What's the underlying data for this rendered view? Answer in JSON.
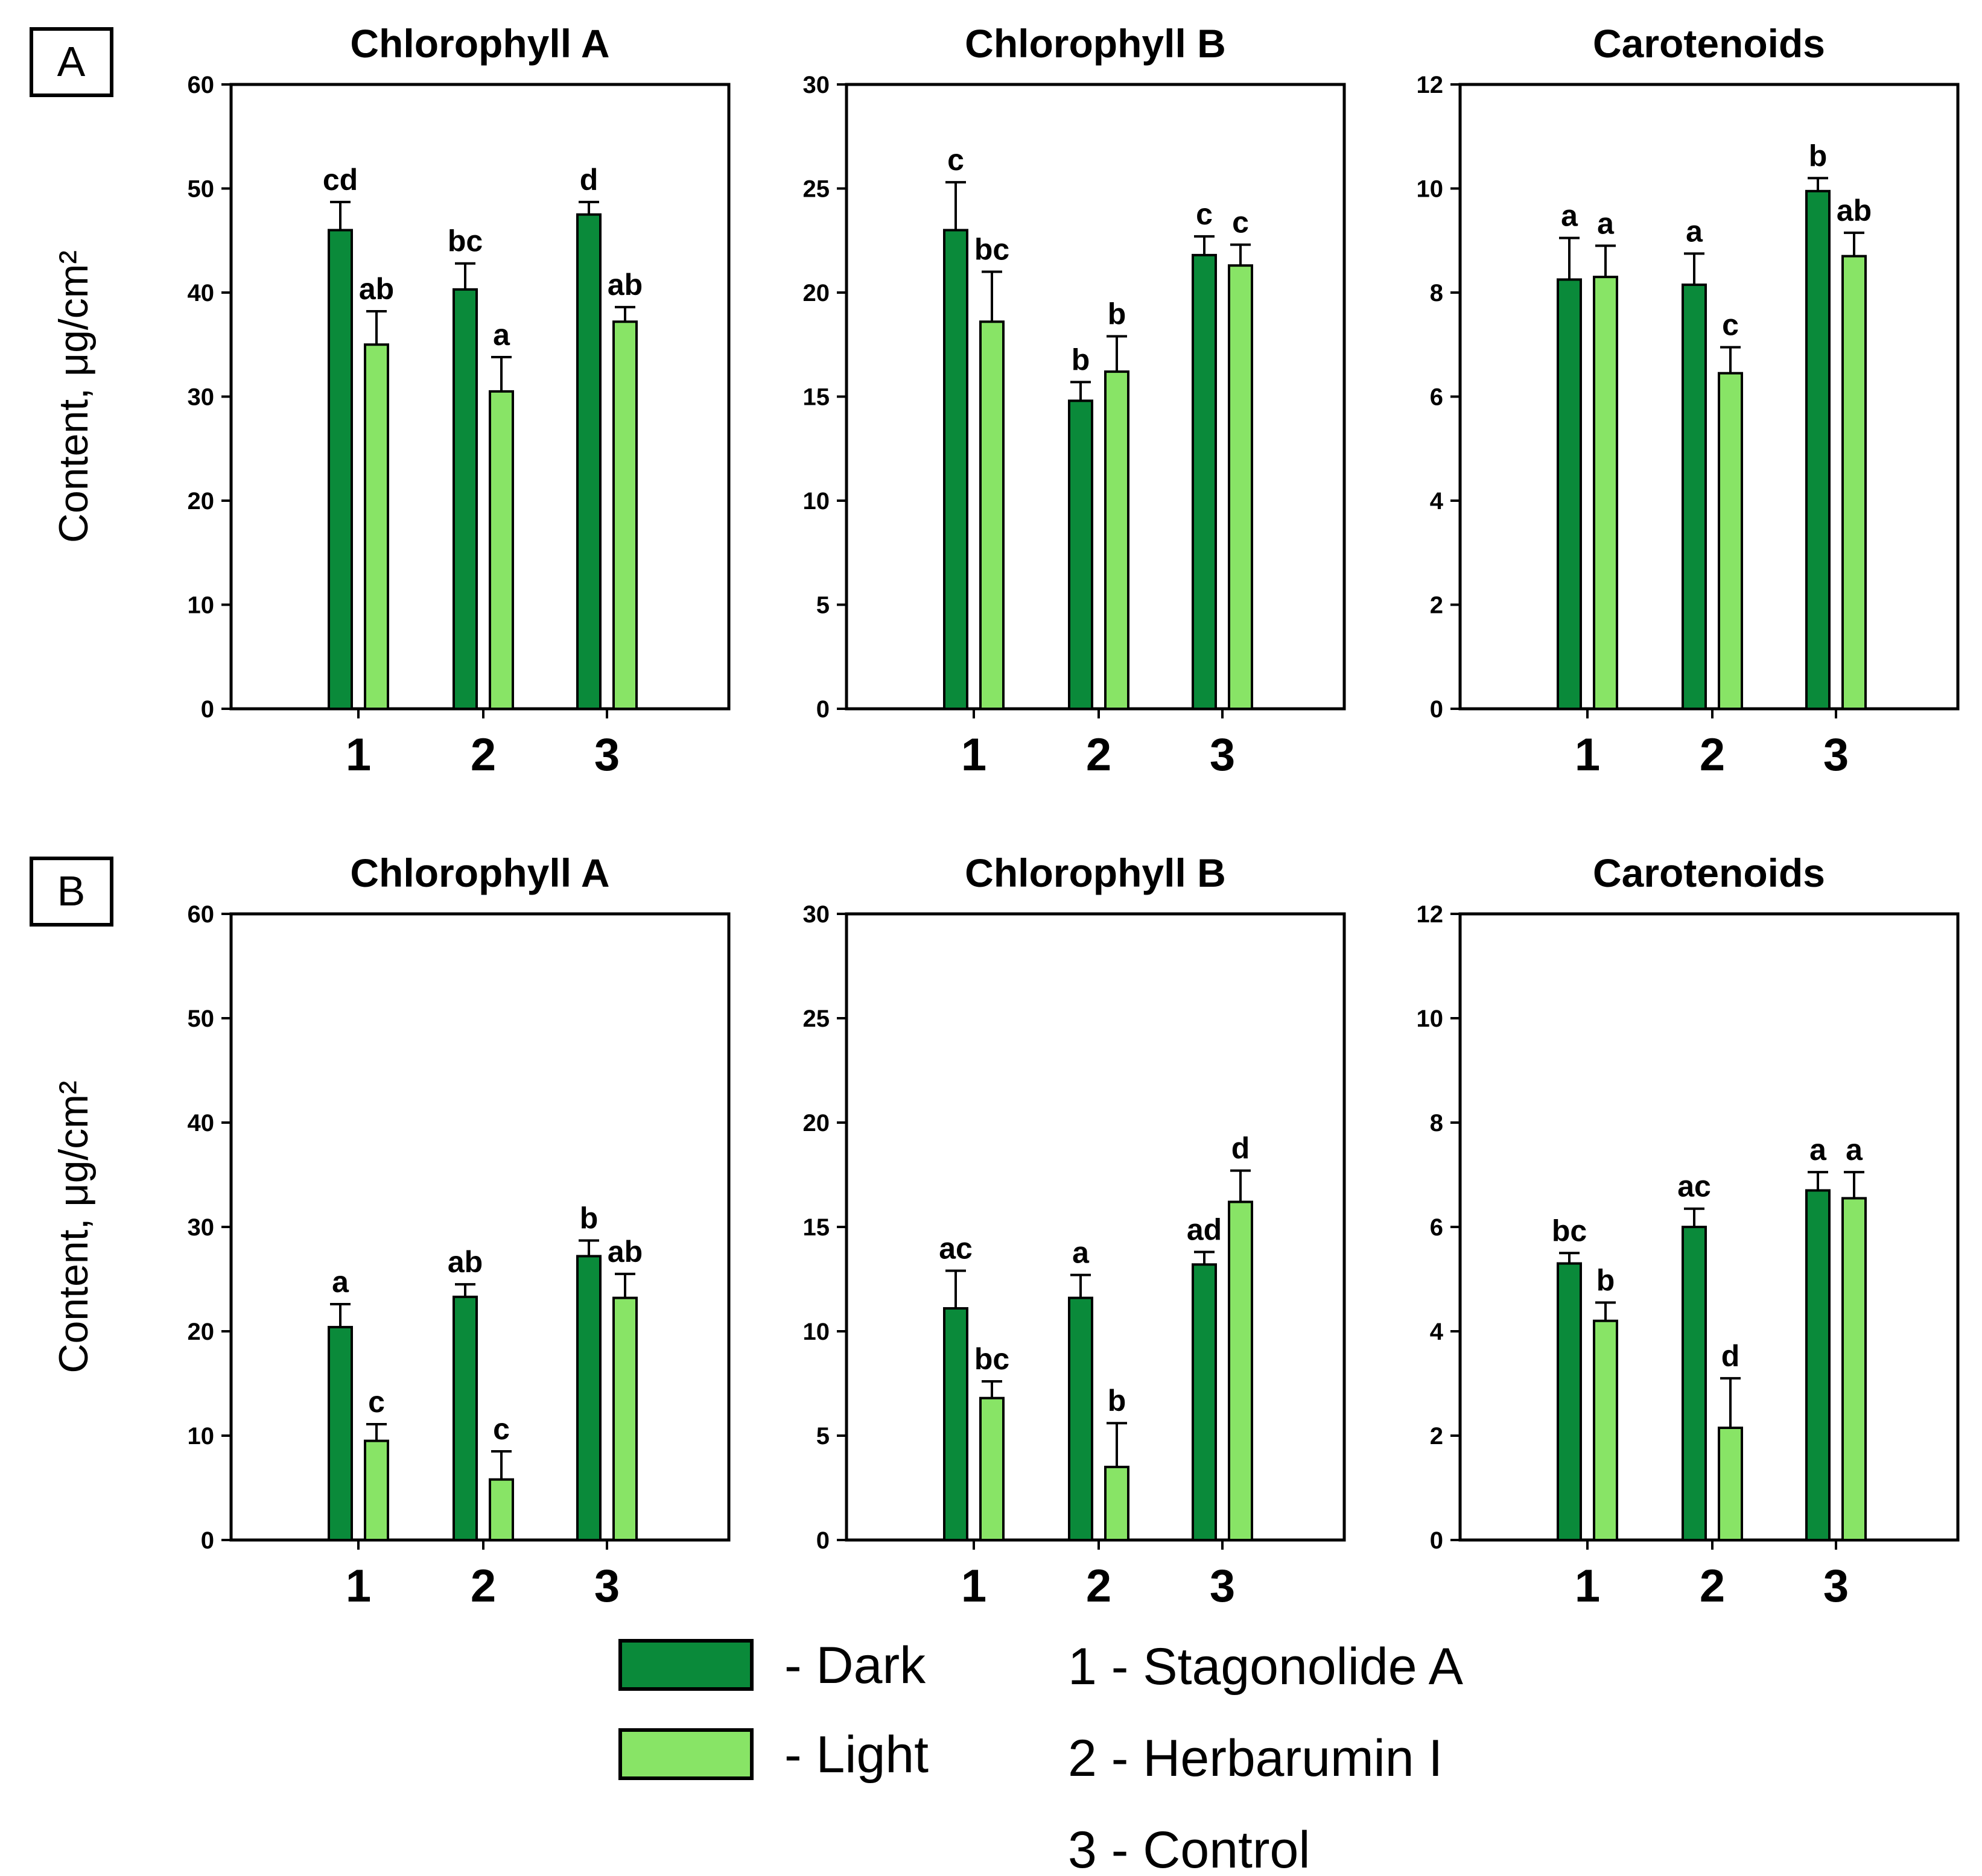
{
  "colors": {
    "dark": "#0a8a3a",
    "light": "#88e466",
    "stroke": "#000000"
  },
  "legend": {
    "series": [
      {
        "key": "dark",
        "label": "- Dark"
      },
      {
        "key": "light",
        "label": "- Light"
      }
    ],
    "treatments": [
      "1 - Stagonolide A",
      "2 - Herbarumin I",
      "3 - Control"
    ]
  },
  "chart_data": [
    {
      "panel": "A",
      "type": "bar",
      "title": "Chlorophyll A",
      "ylabel": "Content, μg/cm²",
      "ylim": [
        0,
        60
      ],
      "yticks": [
        0,
        10,
        20,
        30,
        40,
        50,
        60
      ],
      "categories": [
        "1",
        "2",
        "3"
      ],
      "series": [
        {
          "name": "Dark",
          "values": [
            46,
            40.3,
            47.5
          ],
          "errors": [
            2.7,
            2.5,
            1.2
          ],
          "letters": [
            "cd",
            "bc",
            "d"
          ]
        },
        {
          "name": "Light",
          "values": [
            35,
            30.5,
            37.2
          ],
          "errors": [
            3.2,
            3.3,
            1.4
          ],
          "letters": [
            "ab",
            "a",
            "ab"
          ]
        }
      ]
    },
    {
      "panel": "A",
      "type": "bar",
      "title": "Chlorophyll B",
      "ylabel": "Content, μg/cm²",
      "ylim": [
        0,
        30
      ],
      "yticks": [
        0,
        5,
        10,
        15,
        20,
        25,
        30
      ],
      "categories": [
        "1",
        "2",
        "3"
      ],
      "series": [
        {
          "name": "Dark",
          "values": [
            23,
            14.8,
            21.8
          ],
          "errors": [
            2.3,
            0.9,
            0.9
          ],
          "letters": [
            "c",
            "b",
            "c"
          ]
        },
        {
          "name": "Light",
          "values": [
            18.6,
            16.2,
            21.3
          ],
          "errors": [
            2.4,
            1.7,
            1.0
          ],
          "letters": [
            "bc",
            "b",
            "c"
          ]
        }
      ]
    },
    {
      "panel": "A",
      "type": "bar",
      "title": "Carotenoids",
      "ylabel": "Content, μg/cm²",
      "ylim": [
        0,
        12
      ],
      "yticks": [
        0,
        2,
        4,
        6,
        8,
        10,
        12
      ],
      "categories": [
        "1",
        "2",
        "3"
      ],
      "series": [
        {
          "name": "Dark",
          "values": [
            8.25,
            8.15,
            9.95
          ],
          "errors": [
            0.8,
            0.6,
            0.25
          ],
          "letters": [
            "a",
            "a",
            "b"
          ]
        },
        {
          "name": "Light",
          "values": [
            8.3,
            6.45,
            8.7
          ],
          "errors": [
            0.6,
            0.5,
            0.45
          ],
          "letters": [
            "a",
            "c",
            "ab"
          ]
        }
      ]
    },
    {
      "panel": "B",
      "type": "bar",
      "title": "Chlorophyll A",
      "ylabel": "Content, μg/cm²",
      "ylim": [
        0,
        60
      ],
      "yticks": [
        0,
        10,
        20,
        30,
        40,
        50,
        60
      ],
      "categories": [
        "1",
        "2",
        "3"
      ],
      "series": [
        {
          "name": "Dark",
          "values": [
            20.4,
            23.3,
            27.2
          ],
          "errors": [
            2.2,
            1.2,
            1.5
          ],
          "letters": [
            "a",
            "ab",
            "b"
          ]
        },
        {
          "name": "Light",
          "values": [
            9.5,
            5.8,
            23.2
          ],
          "errors": [
            1.6,
            2.7,
            2.3
          ],
          "letters": [
            "c",
            "c",
            "ab"
          ]
        }
      ]
    },
    {
      "panel": "B",
      "type": "bar",
      "title": "Chlorophyll B",
      "ylabel": "Content, μg/cm²",
      "ylim": [
        0,
        30
      ],
      "yticks": [
        0,
        5,
        10,
        15,
        20,
        25,
        30
      ],
      "categories": [
        "1",
        "2",
        "3"
      ],
      "series": [
        {
          "name": "Dark",
          "values": [
            11.1,
            11.6,
            13.2
          ],
          "errors": [
            1.8,
            1.1,
            0.6
          ],
          "letters": [
            "ac",
            "a",
            "ad"
          ]
        },
        {
          "name": "Light",
          "values": [
            6.8,
            3.5,
            16.2
          ],
          "errors": [
            0.8,
            2.1,
            1.5
          ],
          "letters": [
            "bc",
            "b",
            "d"
          ]
        }
      ]
    },
    {
      "panel": "B",
      "type": "bar",
      "title": "Carotenoids",
      "ylabel": "Content, μg/cm²",
      "ylim": [
        0,
        12
      ],
      "yticks": [
        0,
        2,
        4,
        6,
        8,
        10,
        12
      ],
      "categories": [
        "1",
        "2",
        "3"
      ],
      "series": [
        {
          "name": "Dark",
          "values": [
            5.3,
            6.0,
            6.7
          ],
          "errors": [
            0.2,
            0.35,
            0.35
          ],
          "letters": [
            "bc",
            "ac",
            "a"
          ]
        },
        {
          "name": "Light",
          "values": [
            4.2,
            2.15,
            6.55
          ],
          "errors": [
            0.35,
            0.95,
            0.5
          ],
          "letters": [
            "b",
            "d",
            "a"
          ]
        }
      ]
    }
  ]
}
